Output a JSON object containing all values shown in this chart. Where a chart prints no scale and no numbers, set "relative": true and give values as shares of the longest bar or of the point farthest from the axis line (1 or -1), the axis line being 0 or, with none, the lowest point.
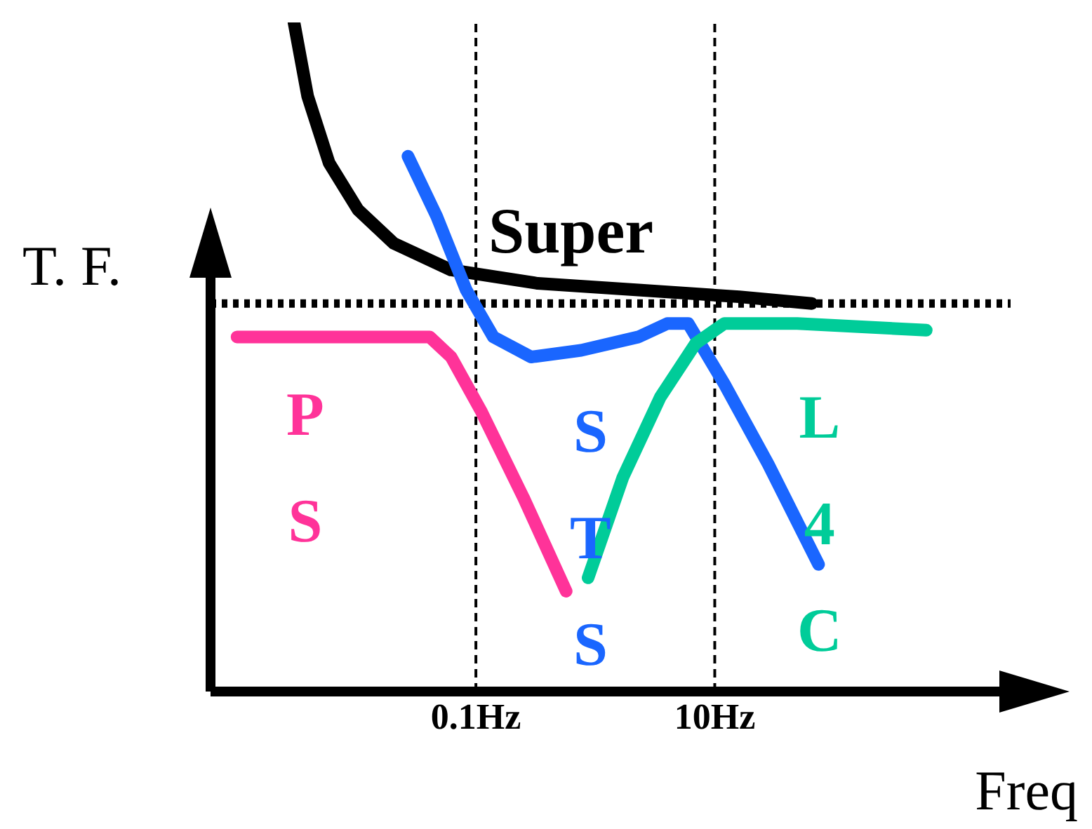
{
  "chart_data": {
    "type": "line",
    "relative": true,
    "ylabel": "T. F.",
    "xlabel": "Freq",
    "log": "x",
    "xlim": [
      0.0006,
      3000
    ],
    "xticks": [
      {
        "value": 0.1,
        "label": "0.1Hz"
      },
      {
        "value": 10,
        "label": "10Hz"
      }
    ],
    "marker": "none",
    "tick_labels": "x",
    "ref_lines": [
      {
        "axis": "y",
        "value": 0.58,
        "color": "#000000",
        "line_style": "dotted"
      },
      {
        "axis": "x",
        "value": 0.1,
        "color": "#000000",
        "line_style": "dashed"
      },
      {
        "axis": "x",
        "value": 10,
        "color": "#000000",
        "line_style": "dashed"
      }
    ],
    "series": [
      {
        "name": "Super",
        "color": "#000000",
        "x": [
          0.003,
          0.0039,
          0.0059,
          0.0103,
          0.0205,
          0.062,
          0.33,
          2.3,
          16,
          65
        ],
        "values": [
          1,
          0.89,
          0.79,
          0.72,
          0.67,
          0.63,
          0.61,
          0.6,
          0.59,
          0.58
        ]
      },
      {
        "name": "STS",
        "color": "#1a66ff",
        "x": [
          0.027,
          0.047,
          0.083,
          0.14,
          0.29,
          0.76,
          2.3,
          4,
          6,
          12,
          28,
          74
        ],
        "values": [
          0.8,
          0.71,
          0.6,
          0.53,
          0.5,
          0.51,
          0.53,
          0.55,
          0.55,
          0.46,
          0.34,
          0.19
        ]
      },
      {
        "name": "PS",
        "color": "#ff3399",
        "x": [
          0.001,
          0.009,
          0.041,
          0.062,
          0.11,
          0.25,
          0.57
        ],
        "values": [
          0.53,
          0.53,
          0.53,
          0.5,
          0.42,
          0.29,
          0.15
        ]
      },
      {
        "name": "L4C",
        "color": "#00cc99",
        "x": [
          0.87,
          1.7,
          3.5,
          6.9,
          12,
          49,
          590
        ],
        "values": [
          0.17,
          0.32,
          0.44,
          0.52,
          0.55,
          0.55,
          0.54
        ]
      }
    ]
  }
}
